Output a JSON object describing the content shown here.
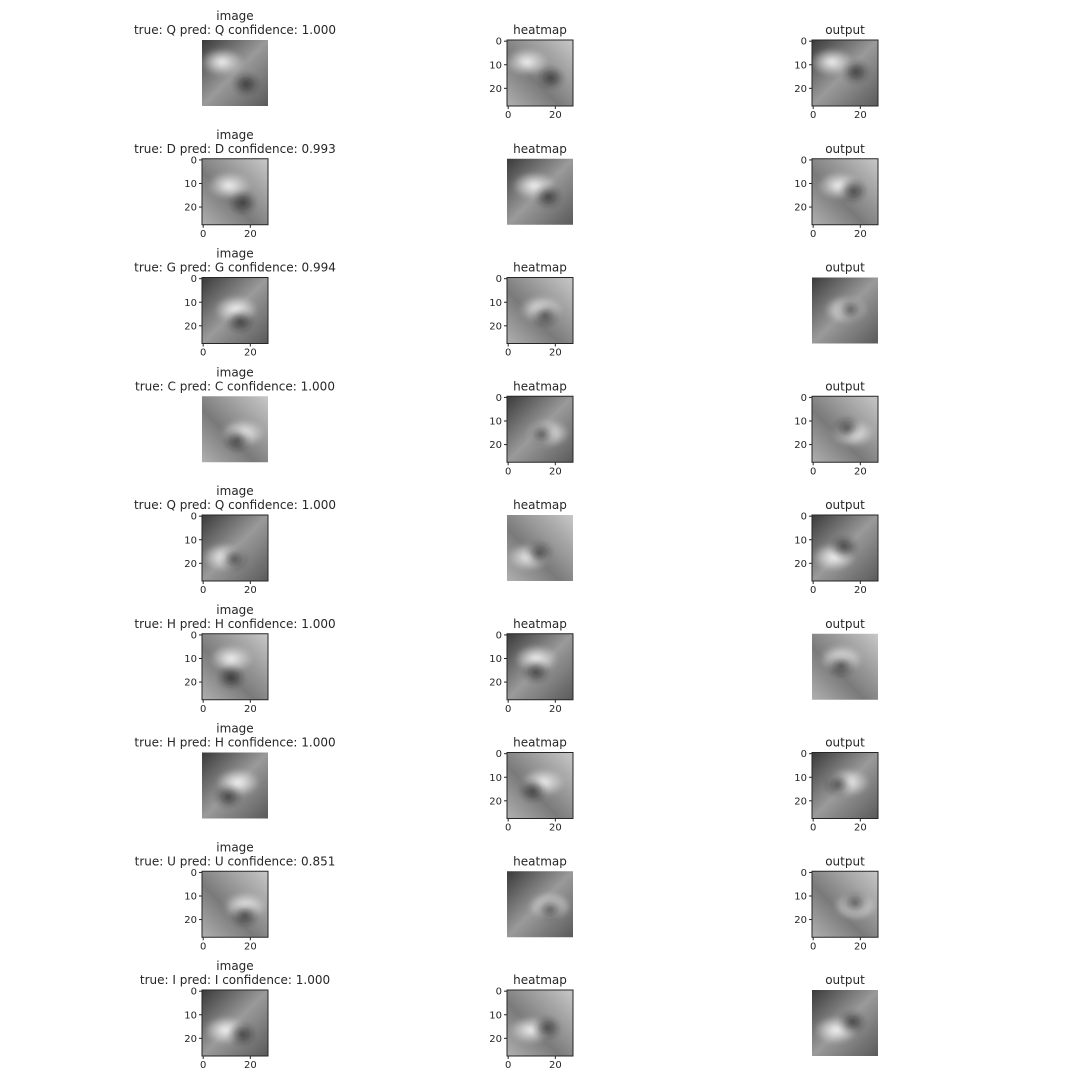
{
  "rows": [
    {
      "panels": [
        {
          "title": [
            "image",
            "true: Q pred: Q confidence: 1.000"
          ]
        },
        {
          "title": [
            "heatmap"
          ],
          "xticks": [
            0,
            20
          ],
          "yticks": [
            0,
            10,
            20
          ]
        },
        {
          "title": [
            "output"
          ],
          "xticks": [
            0,
            20
          ],
          "yticks": [
            0,
            10,
            20
          ]
        }
      ]
    },
    {
      "panels": [
        {
          "title": [
            "image",
            "true: D pred: D confidence: 0.993"
          ],
          "xticks": [
            0,
            20
          ],
          "yticks": [
            0,
            10,
            20
          ]
        },
        {
          "title": [
            "heatmap"
          ]
        },
        {
          "title": [
            "output"
          ],
          "xticks": [
            0,
            20
          ],
          "yticks": [
            0,
            10,
            20
          ]
        }
      ]
    },
    {
      "panels": [
        {
          "title": [
            "image",
            "true: G pred: G confidence: 0.994"
          ],
          "xticks": [
            0,
            20
          ],
          "yticks": [
            0,
            10,
            20
          ]
        },
        {
          "title": [
            "heatmap"
          ],
          "xticks": [
            0,
            20
          ],
          "yticks": [
            0,
            10,
            20
          ]
        },
        {
          "title": [
            "output"
          ]
        }
      ]
    },
    {
      "panels": [
        {
          "title": [
            "image",
            "true: C pred: C confidence: 1.000"
          ]
        },
        {
          "title": [
            "heatmap"
          ],
          "xticks": [
            0,
            20
          ],
          "yticks": [
            0,
            10,
            20
          ]
        },
        {
          "title": [
            "output"
          ],
          "xticks": [
            0,
            20
          ],
          "yticks": [
            0,
            10,
            20
          ]
        }
      ]
    },
    {
      "panels": [
        {
          "title": [
            "image",
            "true: Q pred: Q confidence: 1.000"
          ],
          "xticks": [
            0,
            20
          ],
          "yticks": [
            0,
            10,
            20
          ]
        },
        {
          "title": [
            "heatmap"
          ]
        },
        {
          "title": [
            "output"
          ],
          "xticks": [
            0,
            20
          ],
          "yticks": [
            0,
            10,
            20
          ]
        }
      ]
    },
    {
      "panels": [
        {
          "title": [
            "image",
            "true: H pred: H confidence: 1.000"
          ],
          "xticks": [
            0,
            20
          ],
          "yticks": [
            0,
            10,
            20
          ]
        },
        {
          "title": [
            "heatmap"
          ],
          "xticks": [
            0,
            20
          ],
          "yticks": [
            0,
            10,
            20
          ]
        },
        {
          "title": [
            "output"
          ]
        }
      ]
    },
    {
      "panels": [
        {
          "title": [
            "image",
            "true: H pred: H confidence: 1.000"
          ]
        },
        {
          "title": [
            "heatmap"
          ],
          "xticks": [
            0,
            20
          ],
          "yticks": [
            0,
            10,
            20
          ]
        },
        {
          "title": [
            "output"
          ],
          "xticks": [
            0,
            20
          ],
          "yticks": [
            0,
            10,
            20
          ]
        }
      ]
    },
    {
      "panels": [
        {
          "title": [
            "image",
            "true: U pred: U confidence: 0.851"
          ],
          "xticks": [
            0,
            20
          ],
          "yticks": [
            0,
            10,
            20
          ]
        },
        {
          "title": [
            "heatmap"
          ]
        },
        {
          "title": [
            "output"
          ],
          "xticks": [
            0,
            20
          ],
          "yticks": [
            0,
            10,
            20
          ]
        }
      ]
    },
    {
      "panels": [
        {
          "title": [
            "image",
            "true: I pred: I confidence: 1.000"
          ],
          "xticks": [
            0,
            20
          ],
          "yticks": [
            0,
            10,
            20
          ]
        },
        {
          "title": [
            "heatmap"
          ],
          "xticks": [
            0,
            20
          ],
          "yticks": [
            0,
            10,
            20
          ]
        },
        {
          "title": [
            "output"
          ]
        }
      ]
    }
  ]
}
